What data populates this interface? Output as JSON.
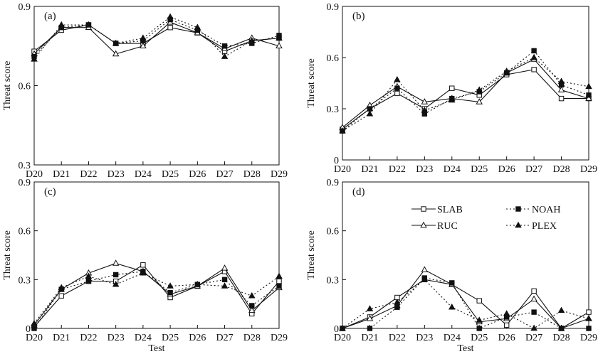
{
  "figure": {
    "series_styles": {
      "SLAB": {
        "marker": "open-square",
        "line": "solid"
      },
      "RUC": {
        "marker": "open-triangle",
        "line": "solid"
      },
      "NOAH": {
        "marker": "filled-square",
        "line": "dotted"
      },
      "PLEX": {
        "marker": "filled-triangle",
        "line": "dotted"
      }
    },
    "colors": {
      "ink": "#111111",
      "background": "#ffffff"
    }
  },
  "chart_data": [
    {
      "type": "line",
      "panel": "(a)",
      "title": "",
      "xlabel": "",
      "ylabel": "Threat score",
      "categories": [
        "D20",
        "D21",
        "D22",
        "D23",
        "D24",
        "D25",
        "D26",
        "D27",
        "D28",
        "D29"
      ],
      "ylim": [
        0.3,
        0.9
      ],
      "yticks": [
        "0.3",
        "0.6",
        "0.9"
      ],
      "grid": false,
      "series": [
        {
          "name": "SLAB",
          "values": [
            0.73,
            0.81,
            0.83,
            0.76,
            0.76,
            0.82,
            0.8,
            0.73,
            0.77,
            0.78
          ]
        },
        {
          "name": "RUC",
          "values": [
            0.72,
            0.82,
            0.82,
            0.72,
            0.75,
            0.84,
            0.8,
            0.74,
            0.78,
            0.75
          ]
        },
        {
          "name": "NOAH",
          "values": [
            0.71,
            0.82,
            0.83,
            0.76,
            0.77,
            0.85,
            0.81,
            0.75,
            0.76,
            0.79
          ]
        },
        {
          "name": "PLEX",
          "values": [
            0.7,
            0.83,
            0.83,
            0.76,
            0.78,
            0.86,
            0.82,
            0.71,
            0.77,
            0.78
          ]
        }
      ]
    },
    {
      "type": "line",
      "panel": "(b)",
      "title": "",
      "xlabel": "",
      "ylabel": "Threat score",
      "categories": [
        "D20",
        "D21",
        "D22",
        "D23",
        "D24",
        "D25",
        "D26",
        "D27",
        "D28",
        "D29"
      ],
      "ylim": [
        0,
        0.9
      ],
      "yticks": [
        "0",
        "0.3",
        "0.6",
        "0.9"
      ],
      "grid": false,
      "series": [
        {
          "name": "SLAB",
          "values": [
            0.18,
            0.3,
            0.39,
            0.3,
            0.42,
            0.38,
            0.5,
            0.53,
            0.36,
            0.36
          ]
        },
        {
          "name": "RUC",
          "values": [
            0.19,
            0.32,
            0.43,
            0.34,
            0.36,
            0.34,
            0.51,
            0.59,
            0.41,
            0.36
          ]
        },
        {
          "name": "NOAH",
          "values": [
            0.17,
            0.3,
            0.42,
            0.27,
            0.36,
            0.4,
            0.51,
            0.64,
            0.44,
            0.38
          ]
        },
        {
          "name": "PLEX",
          "values": [
            0.17,
            0.27,
            0.47,
            0.29,
            0.35,
            0.41,
            0.52,
            0.6,
            0.46,
            0.43
          ]
        }
      ]
    },
    {
      "type": "line",
      "panel": "(c)",
      "title": "",
      "xlabel": "Test",
      "ylabel": "Threat score",
      "categories": [
        "D20",
        "D21",
        "D22",
        "D23",
        "D24",
        "D25",
        "D26",
        "D27",
        "D28",
        "D29"
      ],
      "ylim": [
        0,
        0.9
      ],
      "yticks": [
        "0",
        "0.3",
        "0.6",
        "0.9"
      ],
      "grid": false,
      "series": [
        {
          "name": "SLAB",
          "values": [
            0.01,
            0.2,
            0.29,
            0.29,
            0.39,
            0.19,
            0.26,
            0.35,
            0.09,
            0.29
          ]
        },
        {
          "name": "RUC",
          "values": [
            0.02,
            0.24,
            0.34,
            0.4,
            0.35,
            0.21,
            0.26,
            0.37,
            0.11,
            0.25
          ]
        },
        {
          "name": "NOAH",
          "values": [
            0.0,
            0.24,
            0.29,
            0.33,
            0.35,
            0.22,
            0.27,
            0.3,
            0.14,
            0.26
          ]
        },
        {
          "name": "PLEX",
          "values": [
            0.03,
            0.25,
            0.32,
            0.27,
            0.34,
            0.26,
            0.27,
            0.26,
            0.2,
            0.32
          ]
        }
      ]
    },
    {
      "type": "line",
      "panel": "(d)",
      "title": "",
      "xlabel": "Test",
      "ylabel": "Threat score",
      "categories": [
        "D20",
        "D21",
        "D22",
        "D23",
        "D24",
        "D25",
        "D26",
        "D27",
        "D28",
        "D29"
      ],
      "ylim": [
        0,
        0.9
      ],
      "yticks": [
        "0",
        "0.3",
        "0.6",
        "0.9"
      ],
      "grid": false,
      "legend": {
        "position": "top-right",
        "entries": [
          "SLAB",
          "RUC",
          "NOAH",
          "PLEX"
        ]
      },
      "series": [
        {
          "name": "SLAB",
          "values": [
            0.0,
            0.07,
            0.19,
            0.3,
            0.27,
            0.17,
            0.02,
            0.23,
            0.0,
            0.1
          ]
        },
        {
          "name": "RUC",
          "values": [
            0.0,
            0.06,
            0.14,
            0.36,
            0.27,
            0.04,
            0.06,
            0.18,
            0.0,
            0.06
          ]
        },
        {
          "name": "NOAH",
          "values": [
            0.0,
            0.0,
            0.13,
            0.31,
            0.28,
            0.0,
            0.07,
            0.1,
            0.0,
            0.0
          ]
        },
        {
          "name": "PLEX",
          "values": [
            0.0,
            0.12,
            0.16,
            0.3,
            0.13,
            0.05,
            0.09,
            0.0,
            0.11,
            0.06
          ]
        }
      ]
    }
  ]
}
